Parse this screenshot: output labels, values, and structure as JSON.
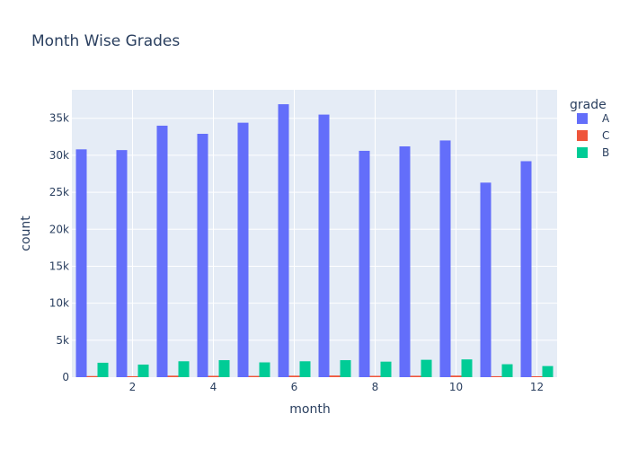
{
  "chart_data": {
    "type": "bar",
    "title": "Month Wise Grades",
    "xlabel": "month",
    "ylabel": "count",
    "x": [
      1,
      2,
      3,
      4,
      5,
      6,
      7,
      8,
      9,
      10,
      11,
      12
    ],
    "xticks": [
      2,
      4,
      6,
      8,
      10,
      12
    ],
    "xlim": [
      0.5,
      12.5
    ],
    "ylim": [
      0,
      38850
    ],
    "yticks": [
      0,
      5000,
      10000,
      15000,
      20000,
      25000,
      30000,
      35000
    ],
    "ytick_labels": [
      "0",
      "5k",
      "10k",
      "15k",
      "20k",
      "25k",
      "30k",
      "35k"
    ],
    "grid": true,
    "legend": {
      "title": "grade",
      "position": "right"
    },
    "plot_bgcolor": "#e5ecf6",
    "series": [
      {
        "name": "A",
        "color": "#636efa",
        "values": [
          30800,
          30700,
          34000,
          32900,
          34400,
          36900,
          35500,
          30600,
          31200,
          32000,
          26300,
          29200
        ]
      },
      {
        "name": "C",
        "color": "#ef553b",
        "values": [
          150,
          130,
          200,
          180,
          170,
          200,
          220,
          180,
          190,
          210,
          130,
          120
        ]
      },
      {
        "name": "B",
        "color": "#00cc96",
        "values": [
          1950,
          1700,
          2150,
          2300,
          2000,
          2150,
          2300,
          2100,
          2350,
          2400,
          1750,
          1500
        ]
      }
    ]
  }
}
